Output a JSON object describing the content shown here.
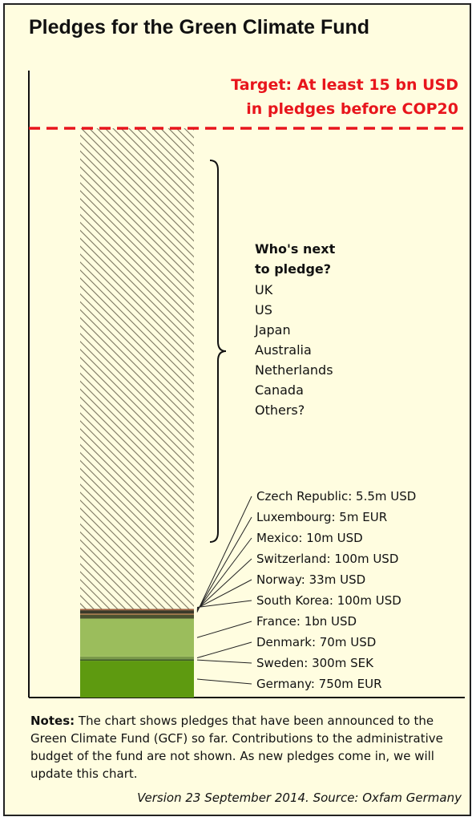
{
  "chart_data": {
    "type": "bar",
    "title": "Pledges for the Green Climate Fund",
    "ylim": [
      0,
      15
    ],
    "target": {
      "value": 15,
      "label_line1": "Target: At least 15 bn USD",
      "label_line2": "in pledges before COP20",
      "color": "#e8151c"
    },
    "remaining": {
      "color": "#7a7560"
    },
    "series": [
      {
        "label": "Germany: 750m EUR",
        "value": 0.97,
        "color": "#5e9a10"
      },
      {
        "label": "Sweden: 300m SEK",
        "value": 0.04,
        "color": "#3c5a22"
      },
      {
        "label": "Denmark: 70m USD",
        "value": 0.07,
        "color": "#7a9a4a"
      },
      {
        "label": "France: 1bn USD",
        "value": 1.0,
        "color": "#9bbd5c"
      },
      {
        "label": "South Korea: 100m USD",
        "value": 0.1,
        "color": "#4a5230"
      },
      {
        "label": "Norway: 33m USD",
        "value": 0.033,
        "color": "#9a6a3a"
      },
      {
        "label": "Switzerland: 100m USD",
        "value": 0.1,
        "color": "#3a3a2a"
      },
      {
        "label": "Mexico: 10m USD",
        "value": 0.01,
        "color": "#c8a070"
      },
      {
        "label": "Luxembourg: 5m EUR",
        "value": 0.0065,
        "color": "#e06848"
      },
      {
        "label": "Czech Republic: 5.5m USD",
        "value": 0.0055,
        "color": "#8a5a3a"
      }
    ],
    "next_heading_line1": "Who's next",
    "next_heading_line2": "to pledge?",
    "next_list": [
      "UK",
      "US",
      "Japan",
      "Australia",
      "Netherlands",
      "Canada",
      "Others?"
    ]
  },
  "title": "Pledges for the Green Climate Fund",
  "notes": {
    "label": "Notes:",
    "text": " The chart shows pledges that have been announced to the Green Climate Fund (GCF) so far. Contributions to the administrative budget of the fund are not shown. As new pledges come in, we will update this chart."
  },
  "version": "Version 23 September 2014. Source: Oxfam Germany"
}
